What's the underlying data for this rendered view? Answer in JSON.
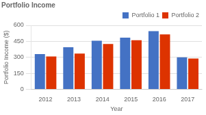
{
  "chart_data": {
    "type": "bar",
    "title": "Portfolio Income",
    "x_label": "Year",
    "y_label": "Portfolio Income ($)",
    "categories": [
      "2012",
      "2013",
      "2014",
      "2015",
      "2016",
      "2017"
    ],
    "series": [
      {
        "name": "Portfolio 1",
        "color": "#4472C4",
        "values": [
          330,
          395,
          455,
          485,
          545,
          300
        ]
      },
      {
        "name": "Portfolio 2",
        "color": "#DD3300",
        "values": [
          308,
          335,
          425,
          460,
          515,
          288
        ]
      }
    ],
    "ylim": [
      0,
      600
    ],
    "yticks": [
      0,
      150,
      300,
      450,
      600
    ],
    "grid": true,
    "legend": "upper right"
  }
}
